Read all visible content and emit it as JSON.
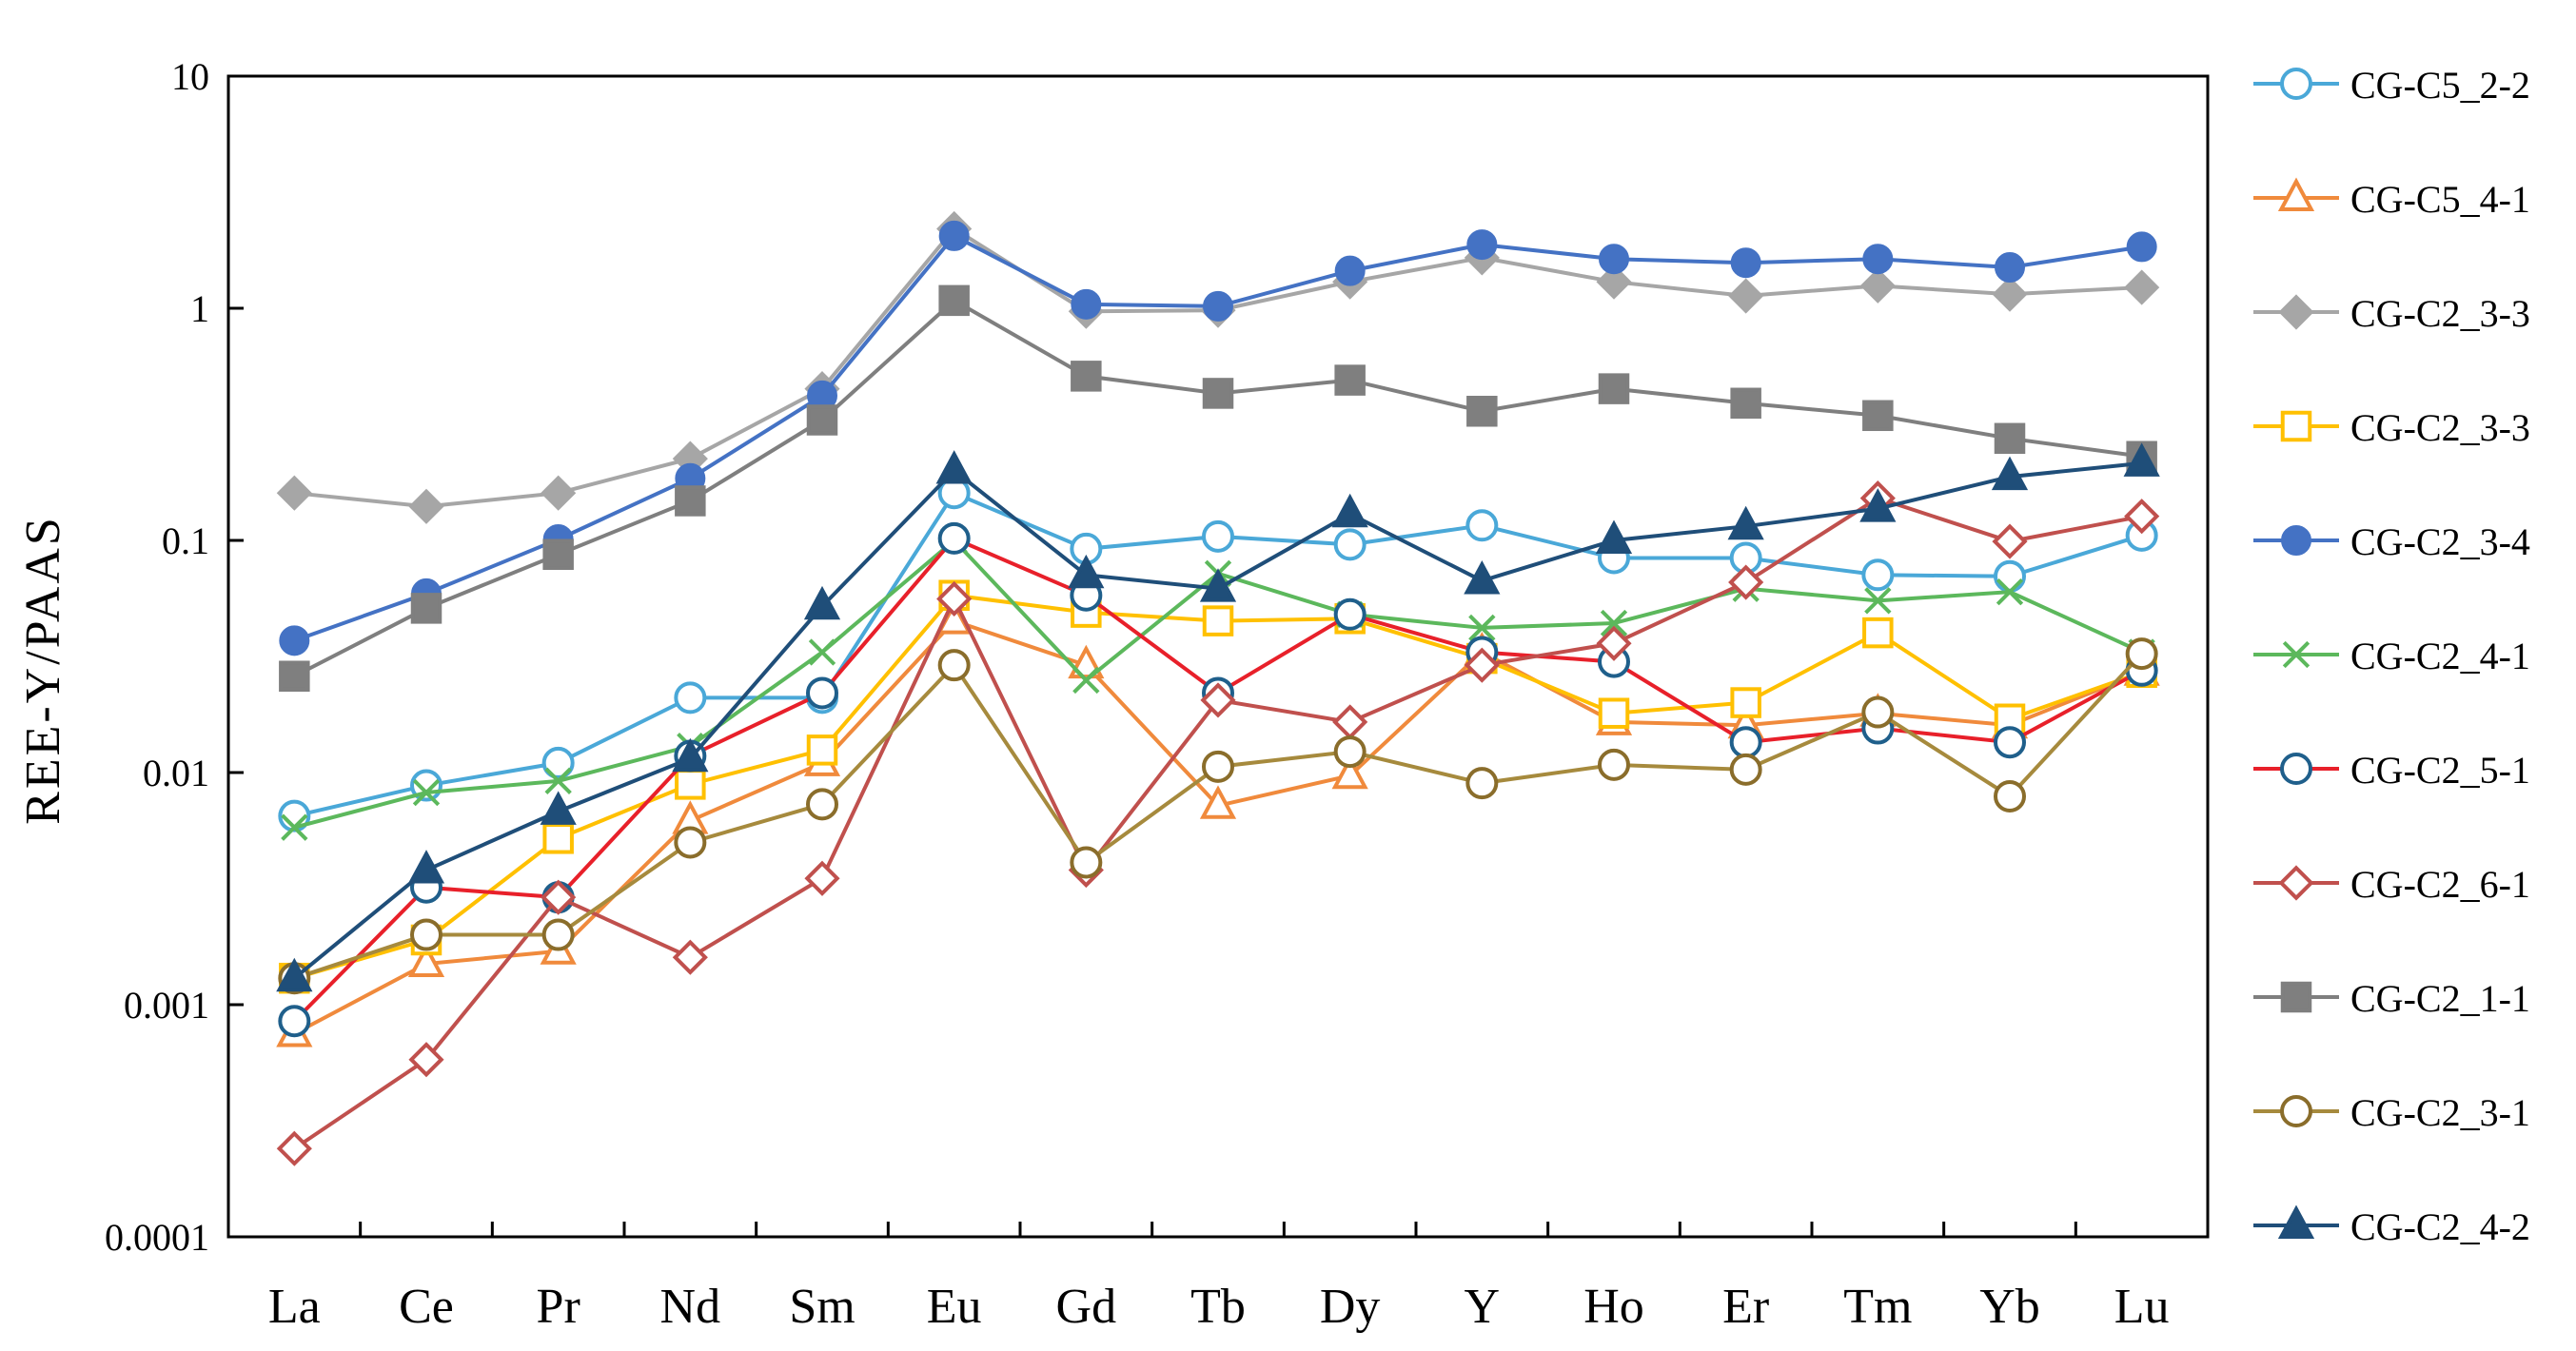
{
  "chart_data": {
    "type": "line",
    "yscale": "log",
    "title": "",
    "xlabel": "",
    "ylabel": "REE-Y/PAAS",
    "ylim": [
      0.0001,
      10
    ],
    "yticks": [
      "0.0001",
      "0.001",
      "0.01",
      "0.1",
      "1",
      "10"
    ],
    "yticks_values": [
      0.0001,
      0.001,
      0.01,
      0.1,
      1,
      10
    ],
    "categories": [
      "La",
      "Ce",
      "Pr",
      "Nd",
      "Sm",
      "Eu",
      "Gd",
      "Tb",
      "Dy",
      "Y",
      "Ho",
      "Er",
      "Tm",
      "Yb",
      "Lu"
    ],
    "legend_position": "right",
    "series": [
      {
        "name": "CG-C5_2-2",
        "color": "#4aa8d8",
        "marker": "circle-open",
        "values": [
          0.0065,
          0.0088,
          0.011,
          0.021,
          0.021,
          0.16,
          0.092,
          0.104,
          0.096,
          0.116,
          0.084,
          0.084,
          0.071,
          0.07,
          0.105
        ]
      },
      {
        "name": "CG-C5_4-1",
        "color": "#f08a3c",
        "marker": "triangle-open",
        "values": [
          0.00075,
          0.0015,
          0.0017,
          0.0062,
          0.011,
          0.045,
          0.029,
          0.0072,
          0.0097,
          0.033,
          0.0165,
          0.016,
          0.018,
          0.016,
          0.027
        ]
      },
      {
        "name": "CG-C2_3-3",
        "color": "#a6a6a6",
        "marker": "diamond-filled",
        "values": [
          0.16,
          0.14,
          0.16,
          0.225,
          0.45,
          2.2,
          0.97,
          0.98,
          1.3,
          1.65,
          1.3,
          1.13,
          1.25,
          1.15,
          1.23
        ]
      },
      {
        "name": "CG-C2_3-3",
        "color": "#ffc000",
        "marker": "square-open",
        "values": [
          0.0013,
          0.0019,
          0.0052,
          0.0089,
          0.0125,
          0.058,
          0.049,
          0.045,
          0.046,
          0.031,
          0.018,
          0.02,
          0.04,
          0.017,
          0.027
        ]
      },
      {
        "name": "CG-C2_3-4",
        "color": "#4472c4",
        "marker": "circle-filled",
        "values": [
          0.037,
          0.059,
          0.101,
          0.185,
          0.42,
          2.05,
          1.04,
          1.02,
          1.45,
          1.88,
          1.63,
          1.57,
          1.63,
          1.5,
          1.84
        ]
      },
      {
        "name": "CG-C2_4-1",
        "color": "#5cb85c",
        "marker": "cross",
        "values": [
          0.0058,
          0.0082,
          0.0092,
          0.013,
          0.033,
          0.1,
          0.025,
          0.072,
          0.048,
          0.042,
          0.044,
          0.062,
          0.055,
          0.06,
          0.033
        ]
      },
      {
        "name": "CG-C2_5-1",
        "color": "#e8202a",
        "marker": "circle-open-dark",
        "values": [
          0.00085,
          0.0032,
          0.0029,
          0.0118,
          0.022,
          0.102,
          0.058,
          0.022,
          0.048,
          0.033,
          0.03,
          0.0135,
          0.0155,
          0.0135,
          0.0275
        ]
      },
      {
        "name": "CG-C2_6-1",
        "color": "#c0504d",
        "marker": "diamond-open",
        "values": [
          0.00024,
          0.00058,
          0.0029,
          0.0016,
          0.0035,
          0.056,
          0.0038,
          0.0205,
          0.0165,
          0.029,
          0.036,
          0.066,
          0.152,
          0.099,
          0.127
        ]
      },
      {
        "name": "CG-C2_1-1",
        "color": "#7f7f7f",
        "marker": "square-filled",
        "values": [
          0.026,
          0.051,
          0.087,
          0.148,
          0.33,
          1.08,
          0.51,
          0.43,
          0.49,
          0.36,
          0.45,
          0.39,
          0.345,
          0.275,
          0.23
        ]
      },
      {
        "name": "CG-C2_3-1",
        "color": "#a68a3d",
        "marker": "circle-open-olive",
        "values": [
          0.0013,
          0.002,
          0.002,
          0.005,
          0.0073,
          0.029,
          0.0041,
          0.0106,
          0.0123,
          0.009,
          0.0108,
          0.0103,
          0.0182,
          0.0079,
          0.0325
        ]
      },
      {
        "name": "CG-C2_4-2",
        "color": "#1f4e79",
        "marker": "triangle-filled",
        "values": [
          0.0013,
          0.0038,
          0.0068,
          0.0115,
          0.052,
          0.2,
          0.071,
          0.062,
          0.13,
          0.067,
          0.1,
          0.115,
          0.137,
          0.188,
          0.215
        ]
      }
    ]
  }
}
